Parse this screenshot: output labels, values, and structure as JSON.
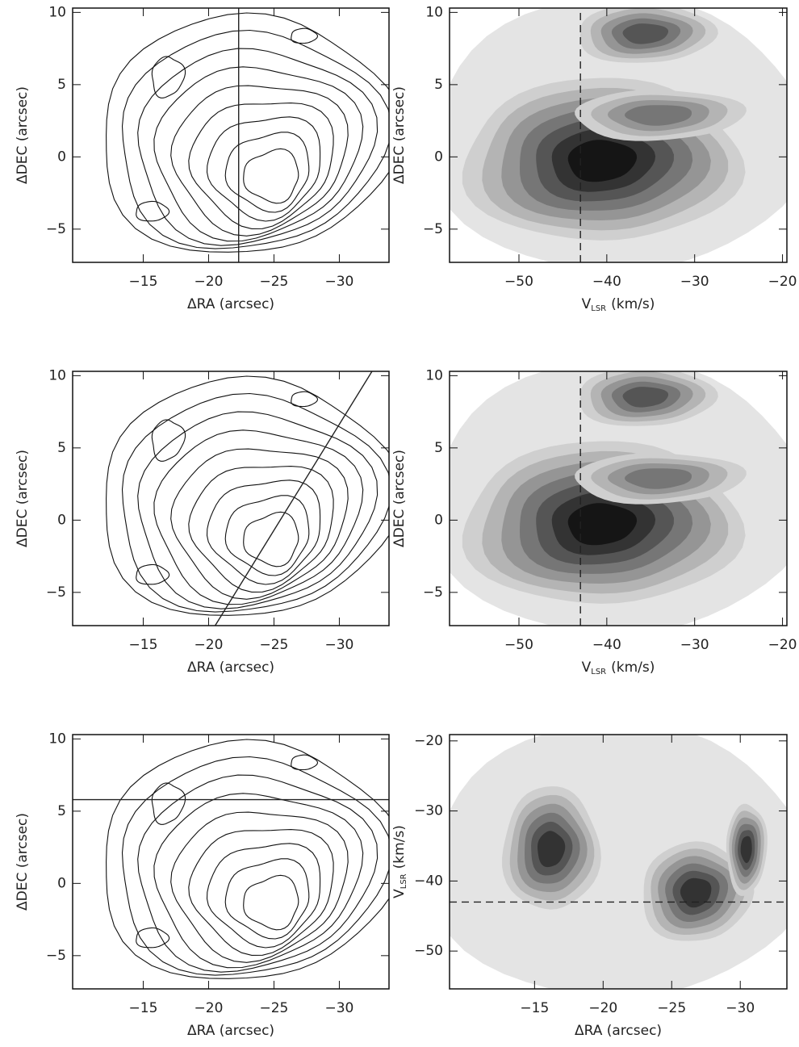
{
  "chart_data": [
    {
      "type": "contour",
      "x_label": "ΔRA (arcsec)",
      "y_label": "ΔDEC (arcsec)",
      "xlim": [
        -9.6,
        -33.8
      ],
      "ylim": [
        -7.3,
        10.3
      ],
      "xticks": [
        {
          "value": -15,
          "label": "−15"
        },
        {
          "value": -20,
          "label": "−20"
        },
        {
          "value": -25,
          "label": "−25"
        },
        {
          "value": -30,
          "label": "−30"
        }
      ],
      "yticks": [
        {
          "value": -5,
          "label": "−5"
        },
        0,
        5,
        10
      ],
      "cut": {
        "x": [
          -22.3,
          -22.3
        ],
        "y": [
          -7.3,
          10.3
        ]
      },
      "cut_style": "solid"
    },
    {
      "type": "pv",
      "x_label": "V",
      "x_label_sub": "LSR",
      "x_label_unit": "(km/s)",
      "y_label": "ΔDEC (arcsec)",
      "xlim": [
        -57.9,
        -19.5
      ],
      "ylim": [
        -7.3,
        10.3
      ],
      "xticks": [
        {
          "value": -50,
          "label": "−50"
        },
        {
          "value": -40,
          "label": "−40"
        },
        {
          "value": -30,
          "label": "−30"
        },
        {
          "value": -20,
          "label": "−20"
        }
      ],
      "yticks": [
        {
          "value": -5,
          "label": "−5"
        },
        0,
        5,
        10
      ],
      "cut": {
        "x": [
          -43,
          -43
        ],
        "y": [
          -7.3,
          10.3
        ]
      },
      "cut_style": "dashed"
    },
    {
      "type": "contour",
      "x_label": "ΔRA (arcsec)",
      "y_label": "ΔDEC (arcsec)",
      "xlim": [
        -9.6,
        -33.8
      ],
      "ylim": [
        -7.3,
        10.3
      ],
      "xticks": [
        {
          "value": -15,
          "label": "−15"
        },
        {
          "value": -20,
          "label": "−20"
        },
        {
          "value": -25,
          "label": "−25"
        },
        {
          "value": -30,
          "label": "−30"
        }
      ],
      "yticks": [
        {
          "value": -5,
          "label": "−5"
        },
        0,
        5,
        10
      ],
      "cut": {
        "x": [
          -20.5,
          -32.5
        ],
        "y": [
          -7.3,
          10.3
        ]
      },
      "cut_style": "solid"
    },
    {
      "type": "pv",
      "x_label": "V",
      "x_label_sub": "LSR",
      "x_label_unit": "(km/s)",
      "y_label": "ΔDEC (arcsec)",
      "xlim": [
        -57.9,
        -19.5
      ],
      "ylim": [
        -7.3,
        10.3
      ],
      "xticks": [
        {
          "value": -50,
          "label": "−50"
        },
        {
          "value": -40,
          "label": "−40"
        },
        {
          "value": -30,
          "label": "−30"
        },
        {
          "value": -20,
          "label": "−20"
        }
      ],
      "yticks": [
        {
          "value": -5,
          "label": "−5"
        },
        0,
        5,
        10
      ],
      "cut": {
        "x": [
          -43,
          -43
        ],
        "y": [
          -7.3,
          10.3
        ]
      },
      "cut_style": "dashed"
    },
    {
      "type": "contour",
      "x_label": "ΔRA (arcsec)",
      "y_label": "ΔDEC (arcsec)",
      "xlim": [
        -9.6,
        -33.8
      ],
      "ylim": [
        -7.3,
        10.3
      ],
      "xticks": [
        {
          "value": -15,
          "label": "−15"
        },
        {
          "value": -20,
          "label": "−20"
        },
        {
          "value": -25,
          "label": "−25"
        },
        {
          "value": -30,
          "label": "−30"
        }
      ],
      "yticks": [
        {
          "value": -5,
          "label": "−5"
        },
        0,
        5,
        10
      ],
      "cut": {
        "x": [
          -9.6,
          -33.8
        ],
        "y": [
          5.8,
          5.8
        ]
      },
      "cut_style": "solid"
    },
    {
      "type": "pv_ra",
      "x_label": "ΔRA (arcsec)",
      "y_label": "V",
      "y_label_sub": "LSR",
      "y_label_unit": "(km/s)",
      "xlim": [
        -8.8,
        -33.4
      ],
      "ylim": [
        -55.4,
        -19.1
      ],
      "xticks": [
        {
          "value": -15,
          "label": "−15"
        },
        {
          "value": -20,
          "label": "−20"
        },
        {
          "value": -25,
          "label": "−25"
        },
        {
          "value": -30,
          "label": "−30"
        }
      ],
      "yticks": [
        {
          "value": -50,
          "label": "−50"
        },
        {
          "value": -40,
          "label": "−40"
        },
        {
          "value": -30,
          "label": "−30"
        },
        {
          "value": -20,
          "label": "−20"
        }
      ],
      "cut": {
        "x": [
          -8.8,
          -33.4
        ],
        "y": [
          -43,
          -43
        ]
      },
      "cut_style": "dashed"
    }
  ]
}
